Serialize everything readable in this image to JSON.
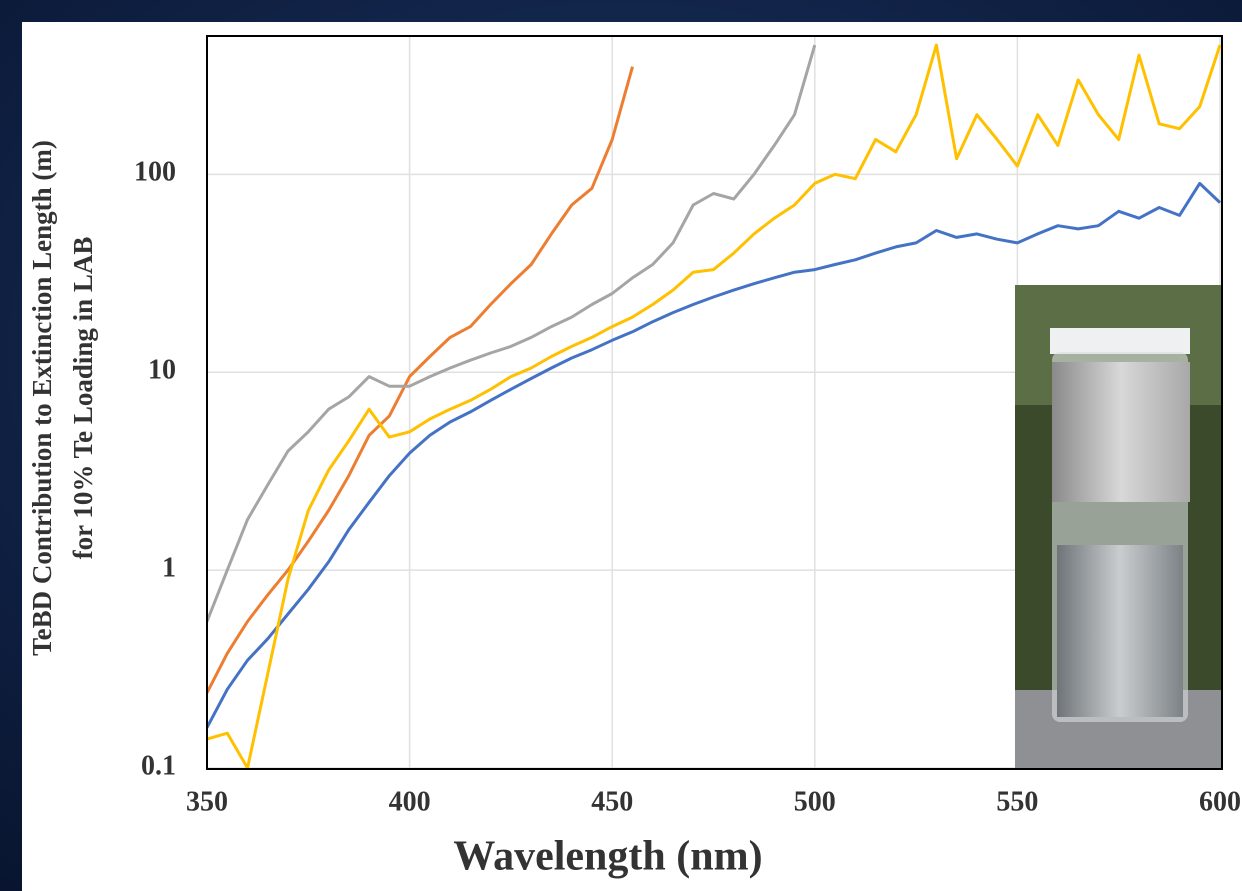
{
  "chart_data": {
    "type": "line",
    "x_label": "Wavelength (nm)",
    "y_label": [
      "TeBD Contribution to Extinction Length (m)",
      "for 10% Te Loading in LAB"
    ],
    "xlim": [
      350,
      600
    ],
    "xticks": [
      350,
      400,
      450,
      500,
      550,
      600
    ],
    "ylim": [
      0.1,
      500
    ],
    "yticks": [
      0.1,
      1,
      10,
      100
    ],
    "ylog": true,
    "grid": true,
    "x": [
      350,
      355,
      360,
      365,
      370,
      375,
      380,
      385,
      390,
      395,
      400,
      405,
      410,
      415,
      420,
      425,
      430,
      435,
      440,
      445,
      450,
      455,
      460,
      465,
      470,
      475,
      480,
      485,
      490,
      495,
      500,
      505,
      510,
      515,
      520,
      525,
      530,
      535,
      540,
      545,
      550,
      555,
      560,
      565,
      570,
      575,
      580,
      585,
      590,
      595,
      600
    ],
    "series": [
      {
        "color": "#4472c4",
        "values": [
          0.16,
          0.25,
          0.35,
          0.45,
          0.6,
          0.8,
          1.1,
          1.6,
          2.2,
          3.0,
          3.9,
          4.8,
          5.6,
          6.3,
          7.2,
          8.2,
          9.3,
          10.5,
          11.8,
          13,
          14.5,
          16,
          18,
          20,
          22,
          24,
          26,
          28,
          30,
          32,
          33,
          35,
          37,
          40,
          43,
          45,
          52,
          48,
          50,
          47,
          45,
          50,
          55,
          53,
          55,
          65,
          60,
          68,
          62,
          90,
          72
        ]
      },
      {
        "color": "#ed7d31",
        "values": [
          0.24,
          0.38,
          0.55,
          0.75,
          1.0,
          1.4,
          2.0,
          3.0,
          4.8,
          6.0,
          9.5,
          12,
          15,
          17,
          22,
          28,
          35,
          50,
          70,
          85,
          150,
          350,
          null,
          null,
          null,
          null,
          null,
          null,
          null,
          null,
          null,
          null,
          null,
          null,
          null,
          null,
          null,
          null,
          null,
          null,
          null,
          null,
          null,
          null,
          null,
          null,
          null,
          null,
          null,
          null,
          null
        ]
      },
      {
        "color": "#a5a5a5",
        "values": [
          0.55,
          1.0,
          1.8,
          2.7,
          4.0,
          5.0,
          6.5,
          7.5,
          9.5,
          8.5,
          8.5,
          9.5,
          10.5,
          11.5,
          12.5,
          13.5,
          15,
          17,
          19,
          22,
          25,
          30,
          35,
          45,
          70,
          80,
          75,
          100,
          140,
          200,
          450,
          null,
          null,
          null,
          null,
          null,
          null,
          null,
          null,
          null,
          null,
          null,
          null,
          null,
          null,
          null,
          null,
          null,
          null,
          null,
          null
        ]
      },
      {
        "color": "#ffc000",
        "values": [
          0.14,
          0.15,
          0.1,
          0.3,
          0.9,
          2.0,
          3.2,
          4.5,
          6.5,
          4.7,
          5.0,
          5.8,
          6.5,
          7.2,
          8.2,
          9.5,
          10.5,
          12,
          13.5,
          15,
          17,
          19,
          22,
          26,
          32,
          33,
          40,
          50,
          60,
          70,
          90,
          100,
          95,
          150,
          130,
          200,
          450,
          120,
          200,
          150,
          110,
          200,
          140,
          300,
          200,
          150,
          400,
          180,
          170,
          220,
          450
        ]
      }
    ]
  }
}
